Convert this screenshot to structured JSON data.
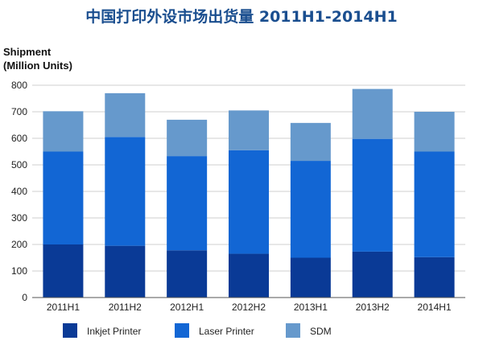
{
  "chart_data": {
    "type": "bar",
    "stacked": true,
    "title": "中国打印外设市场出货量 2011H1-2014H1",
    "ylabel_line1": "Shipment",
    "ylabel_line2": "(Million Units)",
    "xlabel": "",
    "ylim": [
      0,
      800
    ],
    "yticks": [
      0,
      100,
      200,
      300,
      400,
      500,
      600,
      700,
      800
    ],
    "grid": true,
    "legend_position": "bottom",
    "categories": [
      "2011H1",
      "2011H2",
      "2012H1",
      "2012H2",
      "2013H1",
      "2013H2",
      "2014H1"
    ],
    "series": [
      {
        "name": "Inkjet Printer",
        "color": "#0a3a96",
        "values": [
          200,
          195,
          178,
          165,
          150,
          173,
          152
        ]
      },
      {
        "name": "Laser Printer",
        "color": "#1266d4",
        "values": [
          350,
          410,
          355,
          390,
          365,
          425,
          398
        ]
      },
      {
        "name": "SDM",
        "color": "#6699cc",
        "values": [
          152,
          165,
          137,
          150,
          143,
          188,
          150
        ]
      }
    ]
  }
}
